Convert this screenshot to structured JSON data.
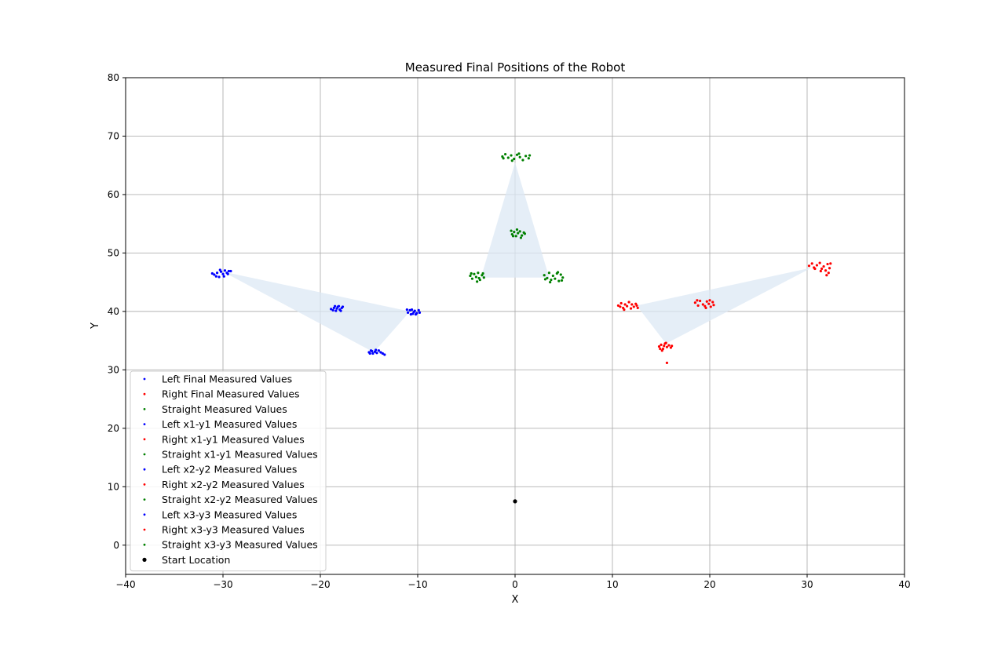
{
  "chart_data": {
    "type": "scatter",
    "title": "Measured Final Positions of the Robot",
    "xlabel": "X",
    "ylabel": "Y",
    "xlim": [
      -40,
      40
    ],
    "ylim": [
      -5,
      80
    ],
    "xticks": [
      -40,
      -30,
      -20,
      -10,
      0,
      10,
      20,
      30,
      40
    ],
    "yticks": [
      0,
      10,
      20,
      30,
      40,
      50,
      60,
      70,
      80
    ],
    "grid": true,
    "legend_position": "lower-left",
    "colors": {
      "left": "#0000ff",
      "right": "#ff0000",
      "straight": "#008000",
      "start": "#000000",
      "fill": "#dce8f4",
      "grid": "#b0b0b0"
    },
    "legend": [
      {
        "label": "Left Final Measured Values",
        "color": "#0000ff"
      },
      {
        "label": "Right Final Measured Values",
        "color": "#ff0000"
      },
      {
        "label": "Straight Measured Values",
        "color": "#008000"
      },
      {
        "label": "Left x1-y1 Measured Values",
        "color": "#0000ff"
      },
      {
        "label": "Right x1-y1 Measured Values",
        "color": "#ff0000"
      },
      {
        "label": "Straight x1-y1 Measured Values",
        "color": "#008000"
      },
      {
        "label": "Left x2-y2 Measured Values",
        "color": "#0000ff"
      },
      {
        "label": "Right x2-y2 Measured Values",
        "color": "#ff0000"
      },
      {
        "label": "Straight x2-y2 Measured Values",
        "color": "#008000"
      },
      {
        "label": "Left x3-y3 Measured Values",
        "color": "#0000ff"
      },
      {
        "label": "Right x3-y3 Measured Values",
        "color": "#ff0000"
      },
      {
        "label": "Straight x3-y3 Measured Values",
        "color": "#008000"
      },
      {
        "label": "Start Location",
        "color": "#000000"
      }
    ],
    "regions": [
      {
        "series": "left",
        "vertices": [
          [
            -30.0,
            46.8
          ],
          [
            -10.8,
            40.0
          ],
          [
            -14.5,
            33.0
          ]
        ]
      },
      {
        "series": "straight",
        "vertices": [
          [
            0.0,
            65.5
          ],
          [
            -3.5,
            45.8
          ],
          [
            3.5,
            45.8
          ]
        ]
      },
      {
        "series": "right",
        "vertices": [
          [
            30.5,
            47.5
          ],
          [
            12.5,
            41.0
          ],
          [
            15.5,
            34.5
          ]
        ]
      }
    ],
    "series": [
      {
        "key": "left",
        "group": "x1-y1",
        "points": [
          [
            -30.9,
            46.3
          ],
          [
            -30.6,
            46.6
          ],
          [
            -30.4,
            45.9
          ],
          [
            -30.2,
            46.8
          ],
          [
            -30.0,
            46.4
          ],
          [
            -29.8,
            47.0
          ],
          [
            -29.6,
            46.6
          ],
          [
            -29.4,
            46.9
          ],
          [
            -29.9,
            46.0
          ],
          [
            -30.7,
            46.0
          ],
          [
            -29.5,
            46.4
          ],
          [
            -30.3,
            47.1
          ],
          [
            -29.2,
            46.9
          ],
          [
            -31.1,
            46.5
          ]
        ]
      },
      {
        "key": "left",
        "group": "x2-y2",
        "points": [
          [
            -18.9,
            40.4
          ],
          [
            -18.6,
            40.6
          ],
          [
            -18.4,
            40.1
          ],
          [
            -18.2,
            40.8
          ],
          [
            -18.0,
            40.3
          ],
          [
            -17.8,
            40.6
          ],
          [
            -18.5,
            40.9
          ],
          [
            -17.9,
            40.1
          ],
          [
            -18.3,
            40.5
          ],
          [
            -18.7,
            40.2
          ],
          [
            -17.7,
            40.8
          ],
          [
            -18.1,
            40.9
          ]
        ]
      },
      {
        "key": "left",
        "group": "x3-y3",
        "points": [
          [
            -11.0,
            39.8
          ],
          [
            -10.8,
            40.2
          ],
          [
            -10.5,
            39.6
          ],
          [
            -10.3,
            40.1
          ],
          [
            -10.1,
            39.7
          ],
          [
            -9.9,
            40.2
          ],
          [
            -10.6,
            40.3
          ],
          [
            -10.2,
            39.5
          ],
          [
            -11.1,
            40.3
          ],
          [
            -10.4,
            39.9
          ],
          [
            -9.8,
            39.8
          ],
          [
            -10.7,
            39.5
          ]
        ]
      },
      {
        "key": "left",
        "group": "final",
        "points": [
          [
            -15.0,
            33.0
          ],
          [
            -14.8,
            33.3
          ],
          [
            -14.6,
            32.8
          ],
          [
            -14.4,
            33.1
          ],
          [
            -14.2,
            32.9
          ],
          [
            -14.0,
            33.3
          ],
          [
            -13.8,
            33.0
          ],
          [
            -14.9,
            32.8
          ],
          [
            -14.3,
            33.4
          ],
          [
            -13.6,
            32.8
          ],
          [
            -14.7,
            33.2
          ],
          [
            -13.4,
            32.6
          ]
        ]
      },
      {
        "key": "right",
        "group": "x1-y1",
        "points": [
          [
            10.6,
            41.0
          ],
          [
            10.9,
            41.4
          ],
          [
            11.1,
            40.6
          ],
          [
            11.3,
            41.2
          ],
          [
            11.5,
            40.9
          ],
          [
            11.7,
            41.6
          ],
          [
            11.9,
            40.5
          ],
          [
            12.0,
            41.2
          ],
          [
            12.2,
            40.8
          ],
          [
            12.4,
            41.3
          ],
          [
            12.6,
            40.6
          ],
          [
            12.5,
            41.0
          ],
          [
            11.2,
            40.3
          ],
          [
            10.8,
            40.8
          ]
        ]
      },
      {
        "key": "right",
        "group": "x2-y2",
        "points": [
          [
            18.5,
            41.5
          ],
          [
            18.8,
            41.0
          ],
          [
            19.0,
            41.8
          ],
          [
            19.3,
            41.2
          ],
          [
            19.5,
            40.9
          ],
          [
            19.7,
            41.7
          ],
          [
            19.9,
            41.3
          ],
          [
            20.1,
            40.8
          ],
          [
            20.3,
            41.6
          ],
          [
            20.4,
            41.1
          ],
          [
            18.7,
            41.9
          ],
          [
            19.6,
            40.6
          ],
          [
            20.0,
            41.9
          ]
        ]
      },
      {
        "key": "right",
        "group": "x3-y3",
        "points": [
          [
            30.2,
            47.8
          ],
          [
            30.5,
            48.2
          ],
          [
            30.7,
            47.5
          ],
          [
            31.0,
            47.9
          ],
          [
            31.3,
            48.3
          ],
          [
            31.5,
            47.3
          ],
          [
            31.7,
            47.7
          ],
          [
            31.9,
            47.0
          ],
          [
            32.1,
            48.1
          ],
          [
            32.2,
            46.6
          ],
          [
            32.3,
            47.4
          ],
          [
            32.0,
            46.2
          ],
          [
            31.4,
            46.9
          ],
          [
            30.8,
            47.3
          ],
          [
            32.4,
            48.2
          ]
        ]
      },
      {
        "key": "right",
        "group": "final",
        "points": [
          [
            14.8,
            34.0
          ],
          [
            15.0,
            34.3
          ],
          [
            15.2,
            33.6
          ],
          [
            15.4,
            34.5
          ],
          [
            15.6,
            33.9
          ],
          [
            15.8,
            34.2
          ],
          [
            16.0,
            33.8
          ],
          [
            15.1,
            33.3
          ],
          [
            14.9,
            33.6
          ],
          [
            15.5,
            34.6
          ],
          [
            16.1,
            34.1
          ],
          [
            15.3,
            34.1
          ],
          [
            15.6,
            31.2
          ]
        ]
      },
      {
        "key": "straight",
        "group": "x1-y1",
        "points": [
          [
            -0.3,
            53.2
          ],
          [
            -0.1,
            53.6
          ],
          [
            0.1,
            52.9
          ],
          [
            0.3,
            53.4
          ],
          [
            0.5,
            53.7
          ],
          [
            0.7,
            53.0
          ],
          [
            0.9,
            53.5
          ],
          [
            -0.4,
            53.8
          ],
          [
            0.2,
            54.0
          ],
          [
            0.6,
            52.6
          ],
          [
            -0.2,
            52.9
          ],
          [
            1.0,
            53.3
          ]
        ]
      },
      {
        "key": "straight",
        "group": "x2-y2",
        "points": [
          [
            -4.6,
            46.1
          ],
          [
            -4.4,
            45.6
          ],
          [
            -4.2,
            46.4
          ],
          [
            -4.0,
            45.9
          ],
          [
            -3.8,
            46.6
          ],
          [
            -3.6,
            45.4
          ],
          [
            -3.4,
            46.2
          ],
          [
            -3.2,
            45.8
          ],
          [
            -3.9,
            45.1
          ],
          [
            -3.3,
            46.5
          ],
          [
            -4.5,
            46.5
          ],
          [
            -3.7,
            45.7
          ]
        ]
      },
      {
        "key": "straight",
        "group": "x3-y3",
        "points": [
          [
            3.0,
            46.2
          ],
          [
            3.3,
            45.7
          ],
          [
            3.5,
            46.6
          ],
          [
            3.7,
            45.4
          ],
          [
            3.9,
            46.1
          ],
          [
            4.1,
            45.6
          ],
          [
            4.3,
            46.5
          ],
          [
            4.5,
            45.2
          ],
          [
            4.7,
            46.3
          ],
          [
            4.9,
            45.8
          ],
          [
            3.6,
            45.0
          ],
          [
            4.4,
            46.7
          ],
          [
            3.1,
            45.5
          ],
          [
            4.8,
            45.3
          ]
        ]
      },
      {
        "key": "straight",
        "group": "final",
        "points": [
          [
            -1.3,
            66.5
          ],
          [
            -1.0,
            66.9
          ],
          [
            -0.7,
            66.3
          ],
          [
            -0.4,
            66.7
          ],
          [
            -0.1,
            66.1
          ],
          [
            0.2,
            66.8
          ],
          [
            0.5,
            66.4
          ],
          [
            0.8,
            65.9
          ],
          [
            1.1,
            66.6
          ],
          [
            1.4,
            66.2
          ],
          [
            1.5,
            66.7
          ],
          [
            -0.3,
            65.8
          ],
          [
            0.4,
            67.0
          ],
          [
            -1.2,
            66.2
          ]
        ]
      },
      {
        "key": "start",
        "group": "start",
        "points": [
          [
            0.0,
            7.5
          ]
        ]
      }
    ]
  }
}
